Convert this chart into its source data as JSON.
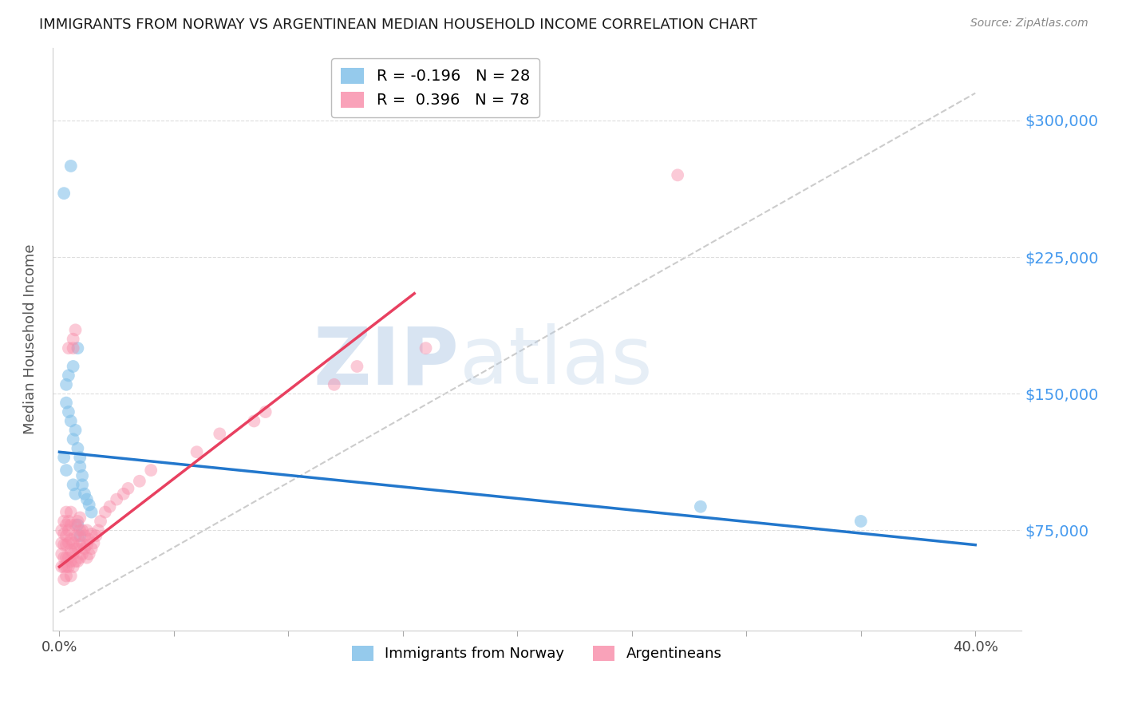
{
  "title": "IMMIGRANTS FROM NORWAY VS ARGENTINEAN MEDIAN HOUSEHOLD INCOME CORRELATION CHART",
  "source": "Source: ZipAtlas.com",
  "ylabel": "Median Household Income",
  "ylim": [
    20000,
    340000
  ],
  "xlim": [
    -0.003,
    0.42
  ],
  "watermark_zip": "ZIP",
  "watermark_atlas": "atlas",
  "norway_color": "#7bbde8",
  "argentina_color": "#f88ba8",
  "norway_line_color": "#2277cc",
  "argentina_line_color": "#e84060",
  "diag_line_color": "#cccccc",
  "grid_color": "#dddddd",
  "background_color": "#ffffff",
  "ytick_color": "#4499ee",
  "norway_scatter_x": [
    0.005,
    0.002,
    0.008,
    0.006,
    0.003,
    0.003,
    0.004,
    0.005,
    0.007,
    0.006,
    0.008,
    0.009,
    0.009,
    0.01,
    0.01,
    0.011,
    0.012,
    0.013,
    0.014,
    0.004,
    0.002,
    0.003,
    0.006,
    0.007,
    0.008,
    0.009,
    0.28,
    0.35
  ],
  "norway_scatter_y": [
    275000,
    260000,
    175000,
    165000,
    155000,
    145000,
    140000,
    135000,
    130000,
    125000,
    120000,
    115000,
    110000,
    105000,
    100000,
    95000,
    92000,
    89000,
    85000,
    160000,
    115000,
    108000,
    100000,
    95000,
    78000,
    72000,
    88000,
    80000
  ],
  "argentina_scatter_x": [
    0.001,
    0.001,
    0.001,
    0.001,
    0.002,
    0.002,
    0.002,
    0.002,
    0.002,
    0.002,
    0.003,
    0.003,
    0.003,
    0.003,
    0.003,
    0.003,
    0.003,
    0.004,
    0.004,
    0.004,
    0.004,
    0.004,
    0.004,
    0.005,
    0.005,
    0.005,
    0.005,
    0.005,
    0.005,
    0.006,
    0.006,
    0.006,
    0.006,
    0.006,
    0.007,
    0.007,
    0.007,
    0.007,
    0.007,
    0.008,
    0.008,
    0.008,
    0.008,
    0.009,
    0.009,
    0.009,
    0.009,
    0.01,
    0.01,
    0.01,
    0.011,
    0.011,
    0.012,
    0.012,
    0.012,
    0.013,
    0.013,
    0.014,
    0.014,
    0.015,
    0.016,
    0.017,
    0.018,
    0.02,
    0.022,
    0.025,
    0.028,
    0.03,
    0.035,
    0.04,
    0.06,
    0.07,
    0.085,
    0.09,
    0.12,
    0.13,
    0.16,
    0.27
  ],
  "argentina_scatter_y": [
    55000,
    62000,
    68000,
    75000,
    48000,
    55000,
    60000,
    67000,
    73000,
    80000,
    50000,
    55000,
    60000,
    67000,
    72000,
    78000,
    85000,
    55000,
    60000,
    68000,
    75000,
    80000,
    175000,
    50000,
    58000,
    64000,
    70000,
    78000,
    85000,
    55000,
    62000,
    68000,
    175000,
    180000,
    58000,
    65000,
    72000,
    78000,
    185000,
    58000,
    65000,
    72000,
    80000,
    60000,
    67000,
    75000,
    82000,
    62000,
    68000,
    75000,
    65000,
    72000,
    60000,
    67000,
    75000,
    62000,
    70000,
    65000,
    73000,
    68000,
    72000,
    75000,
    80000,
    85000,
    88000,
    92000,
    95000,
    98000,
    102000,
    108000,
    118000,
    128000,
    135000,
    140000,
    155000,
    165000,
    175000,
    270000
  ],
  "norway_line_x": [
    0.0,
    0.4
  ],
  "norway_line_y": [
    118000,
    67000
  ],
  "argentina_line_x": [
    0.0,
    0.155
  ],
  "argentina_line_y": [
    55000,
    205000
  ],
  "diag_line_x": [
    0.0,
    0.4
  ],
  "diag_line_y": [
    30000,
    315000
  ],
  "legend_norway_label": "R = -0.196   N = 28",
  "legend_argentina_label": "R =  0.396   N = 78",
  "yticks": [
    75000,
    150000,
    225000,
    300000
  ],
  "ytick_labels": [
    "$75,000",
    "$150,000",
    "$225,000",
    "$300,000"
  ],
  "xtick_vals": [
    0.0,
    0.05,
    0.1,
    0.15,
    0.2,
    0.25,
    0.3,
    0.35,
    0.4
  ],
  "scatter_size": 130,
  "norway_alpha": 0.55,
  "argentina_alpha": 0.45
}
